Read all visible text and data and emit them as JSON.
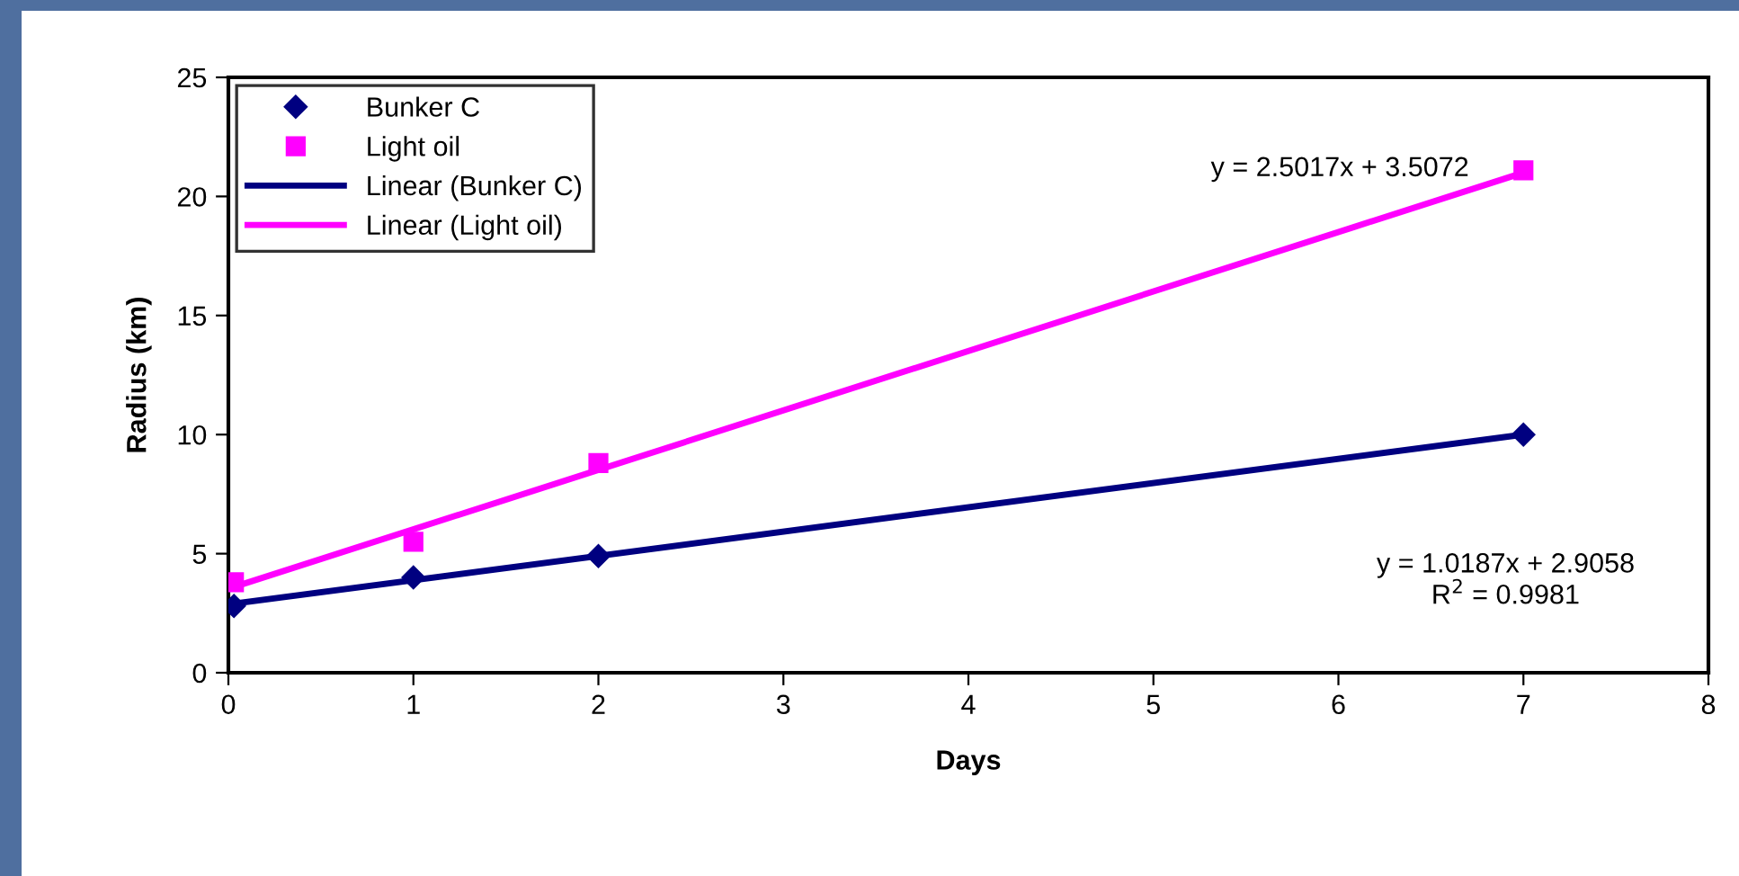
{
  "chart_data": {
    "type": "scatter",
    "xlabel": "Days",
    "ylabel": "Radius (km)",
    "xlim": [
      0,
      8
    ],
    "xticks": [
      0,
      1,
      2,
      3,
      4,
      5,
      6,
      7,
      8
    ],
    "ylim": [
      0,
      25
    ],
    "yticks": [
      0,
      5,
      10,
      15,
      20,
      25
    ],
    "grid": false,
    "legend": "top left",
    "series": [
      {
        "name": "Bunker C",
        "marker": "diamond",
        "color": "#000080",
        "x": [
          0.03,
          1,
          2,
          7
        ],
        "values": [
          2.8,
          4.0,
          4.9,
          10.0
        ]
      },
      {
        "name": "Light oil",
        "marker": "square",
        "color": "#ff00ff",
        "x": [
          0.03,
          1,
          2,
          7
        ],
        "values": [
          3.8,
          5.5,
          8.8,
          21.1
        ]
      },
      {
        "name": "Linear (Bunker C)",
        "type": "line",
        "line_style": "solid",
        "color": "#000080",
        "x": [
          0.03,
          7
        ],
        "values": [
          2.9,
          10.0
        ]
      },
      {
        "name": "Linear (Light oil)",
        "type": "line",
        "line_style": "solid",
        "color": "#ff00ff",
        "x": [
          0.03,
          7
        ],
        "values": [
          3.6,
          21.0
        ]
      }
    ],
    "annotations": [
      "y = 2.5017x + 3.5072",
      "y = 1.0187x + 2.9058\nR$^{2}$ = 0.9981"
    ]
  }
}
